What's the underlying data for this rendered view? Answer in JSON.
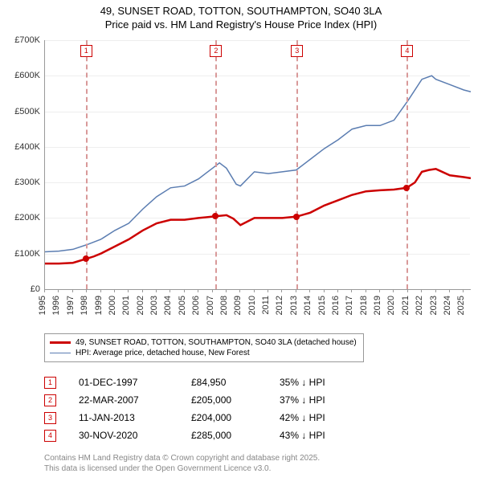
{
  "title_line1": "49, SUNSET ROAD, TOTTON, SOUTHAMPTON, SO40 3LA",
  "title_line2": "Price paid vs. HM Land Registry's House Price Index (HPI)",
  "title_fontsize": 13,
  "chart": {
    "type": "line",
    "background_color": "#ffffff",
    "grid_color": "#eeeeee",
    "axis_color": "#999999",
    "x_years": [
      1995,
      1996,
      1997,
      1998,
      1999,
      2000,
      2001,
      2002,
      2003,
      2004,
      2005,
      2006,
      2007,
      2008,
      2009,
      2010,
      2011,
      2012,
      2013,
      2014,
      2015,
      2016,
      2017,
      2018,
      2019,
      2020,
      2021,
      2022,
      2023,
      2024,
      2025
    ],
    "xlim": [
      1995,
      2025.5
    ],
    "ylim": [
      0,
      700000
    ],
    "ytick_step": 100000,
    "yticks": [
      "£0",
      "£100K",
      "£200K",
      "£300K",
      "£400K",
      "£500K",
      "£600K",
      "£700K"
    ],
    "xtick_label_fontsize": 11,
    "ytick_label_fontsize": 11,
    "xtick_rotation": -90,
    "series_red": {
      "color": "#cc0000",
      "width": 2.5,
      "label": "49, SUNSET ROAD, TOTTON, SOUTHAMPTON, SO40 3LA (detached house)",
      "points": [
        [
          1995.0,
          72000
        ],
        [
          1996.0,
          72000
        ],
        [
          1997.0,
          74000
        ],
        [
          1997.92,
          84950
        ],
        [
          1998.5,
          92000
        ],
        [
          1999.0,
          100000
        ],
        [
          2000.0,
          120000
        ],
        [
          2001.0,
          140000
        ],
        [
          2002.0,
          165000
        ],
        [
          2003.0,
          185000
        ],
        [
          2004.0,
          195000
        ],
        [
          2005.0,
          195000
        ],
        [
          2006.0,
          200000
        ],
        [
          2007.22,
          205000
        ],
        [
          2008.0,
          208000
        ],
        [
          2008.5,
          198000
        ],
        [
          2009.0,
          180000
        ],
        [
          2010.0,
          200000
        ],
        [
          2011.0,
          200000
        ],
        [
          2012.0,
          200000
        ],
        [
          2013.03,
          204000
        ],
        [
          2014.0,
          215000
        ],
        [
          2015.0,
          235000
        ],
        [
          2016.0,
          250000
        ],
        [
          2017.0,
          265000
        ],
        [
          2018.0,
          275000
        ],
        [
          2019.0,
          278000
        ],
        [
          2020.0,
          280000
        ],
        [
          2020.92,
          285000
        ],
        [
          2021.5,
          300000
        ],
        [
          2022.0,
          330000
        ],
        [
          2022.5,
          335000
        ],
        [
          2023.0,
          338000
        ],
        [
          2024.0,
          320000
        ],
        [
          2025.0,
          315000
        ],
        [
          2025.5,
          312000
        ]
      ]
    },
    "series_blue": {
      "color": "#5b7db1",
      "width": 1.5,
      "label": "HPI: Average price, detached house, New Forest",
      "points": [
        [
          1995.0,
          105000
        ],
        [
          1996.0,
          107000
        ],
        [
          1997.0,
          112000
        ],
        [
          1998.0,
          125000
        ],
        [
          1999.0,
          140000
        ],
        [
          2000.0,
          165000
        ],
        [
          2001.0,
          185000
        ],
        [
          2002.0,
          225000
        ],
        [
          2003.0,
          260000
        ],
        [
          2004.0,
          285000
        ],
        [
          2005.0,
          290000
        ],
        [
          2006.0,
          310000
        ],
        [
          2007.0,
          340000
        ],
        [
          2007.5,
          355000
        ],
        [
          2008.0,
          340000
        ],
        [
          2008.7,
          295000
        ],
        [
          2009.0,
          290000
        ],
        [
          2010.0,
          330000
        ],
        [
          2011.0,
          325000
        ],
        [
          2012.0,
          330000
        ],
        [
          2013.0,
          335000
        ],
        [
          2014.0,
          365000
        ],
        [
          2015.0,
          395000
        ],
        [
          2016.0,
          420000
        ],
        [
          2017.0,
          450000
        ],
        [
          2018.0,
          460000
        ],
        [
          2019.0,
          460000
        ],
        [
          2020.0,
          475000
        ],
        [
          2021.0,
          530000
        ],
        [
          2022.0,
          590000
        ],
        [
          2022.7,
          600000
        ],
        [
          2023.0,
          590000
        ],
        [
          2024.0,
          575000
        ],
        [
          2025.0,
          560000
        ],
        [
          2025.5,
          555000
        ]
      ]
    },
    "event_lines": {
      "color": "#d99999",
      "dash": "4,4",
      "box_border": "#cc0000",
      "box_text_color": "#cc0000",
      "events": [
        {
          "n": "1",
          "year": 1997.92,
          "price": 84950
        },
        {
          "n": "2",
          "year": 2007.22,
          "price": 205000
        },
        {
          "n": "3",
          "year": 2013.03,
          "price": 204000
        },
        {
          "n": "4",
          "year": 2020.92,
          "price": 285000
        }
      ]
    }
  },
  "legend": {
    "border_color": "#999999",
    "fontsize": 10,
    "items": [
      {
        "color": "#cc0000",
        "width": 3,
        "label": "49, SUNSET ROAD, TOTTON, SOUTHAMPTON, SO40 3LA (detached house)"
      },
      {
        "color": "#5b7db1",
        "width": 1.5,
        "label": "HPI: Average price, detached house, New Forest"
      }
    ]
  },
  "transactions": {
    "arrow_glyph": "↓",
    "suffix": " HPI",
    "rows": [
      {
        "n": "1",
        "date": "01-DEC-1997",
        "price": "£84,950",
        "delta": "35%"
      },
      {
        "n": "2",
        "date": "22-MAR-2007",
        "price": "£205,000",
        "delta": "37%"
      },
      {
        "n": "3",
        "date": "11-JAN-2013",
        "price": "£204,000",
        "delta": "42%"
      },
      {
        "n": "4",
        "date": "30-NOV-2020",
        "price": "£285,000",
        "delta": "43%"
      }
    ]
  },
  "footer": {
    "color": "#888888",
    "fontsize": 10,
    "line1": "Contains HM Land Registry data © Crown copyright and database right 2025.",
    "line2": "This data is licensed under the Open Government Licence v3.0."
  }
}
